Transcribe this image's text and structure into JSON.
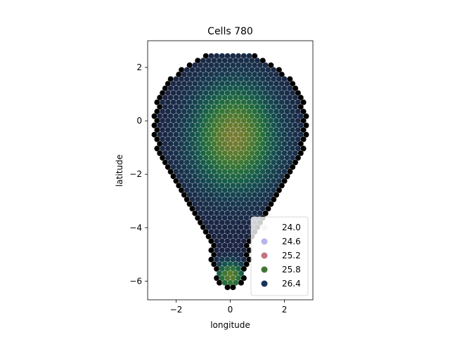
{
  "chart_data": {
    "type": "scatter",
    "title": "Cells 780",
    "xlabel": "longitude",
    "ylabel": "latitude",
    "xlim": [
      -3.05,
      3.05
    ],
    "ylim": [
      -6.7,
      3.0
    ],
    "x_ticks": [
      -2,
      0,
      2
    ],
    "x_tick_labels": [
      "−2",
      "0",
      "2"
    ],
    "y_ticks": [
      -6,
      -4,
      -2,
      0,
      2
    ],
    "y_tick_labels": [
      "−6",
      "−4",
      "−2",
      "0",
      "2"
    ],
    "grid": false,
    "colormap": "cubehelix",
    "color_range": [
      23.6,
      26.8
    ],
    "point_count": 780,
    "point_spacing": 0.2,
    "point_color_rule": "value peaks near center (0.15, -0.6) and near (0, -5.8); edge cells darkest",
    "legend": {
      "placement": "lower-right",
      "entries": [
        {
          "label": "24.0",
          "color": "#f4f7f3"
        },
        {
          "label": "24.6",
          "color": "#b8b4f0"
        },
        {
          "label": "25.2",
          "color": "#c27480"
        },
        {
          "label": "25.8",
          "color": "#3f7633"
        },
        {
          "label": "26.4",
          "color": "#16335a"
        }
      ]
    }
  }
}
